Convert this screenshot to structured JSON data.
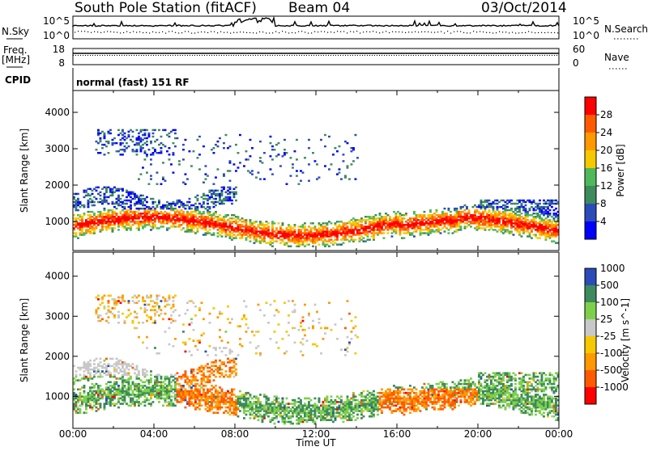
{
  "header": {
    "station": "South Pole Station (fitACF)",
    "beam": "Beam 04",
    "date": "03/Oct/2014"
  },
  "top_panels": {
    "nsky_label": "N.Sky",
    "nsky_ticks": [
      "10^5",
      "10^0"
    ],
    "nsearch_label": "N.Search",
    "nsearch_ticks": [
      "10^5",
      "10^0"
    ],
    "freq_label_1": "Freq.",
    "freq_label_2": "[MHz]",
    "freq_ticks": [
      "18",
      "8"
    ],
    "nave_label": "Nave",
    "nave_ticks": [
      "60",
      "0"
    ],
    "cpid_label": "CPID",
    "cpid_value": "normal (fast) 151 RF"
  },
  "colors": {
    "power": [
      "#0000ff",
      "#2b4cb8",
      "#3d8a5c",
      "#4fb85a",
      "#f5c800",
      "#ff9900",
      "#ff5a00",
      "#ff0000"
    ],
    "velocity": [
      "#ff0000",
      "#ff5a00",
      "#ff9900",
      "#f5c800",
      "#c8c8c8",
      "#7ed04a",
      "#3d8a5c",
      "#2b4cb8"
    ]
  },
  "chart_data": [
    {
      "type": "heatmap",
      "panel": "power",
      "ylabel": "Slant Range [km]",
      "ylim": [
        200,
        4600
      ],
      "yticks": [
        "1000",
        "2000",
        "3000",
        "4000"
      ],
      "xlabel": "Time UT",
      "xlim": [
        "00:00",
        "24:00"
      ],
      "xticks": [
        "00:00",
        "04:00",
        "08:00",
        "12:00",
        "16:00",
        "20:00",
        "00:00"
      ],
      "colorbar_label": "Power [dB]",
      "colorbar_ticks": [
        "4",
        "8",
        "12",
        "16",
        "20",
        "24",
        "28"
      ],
      "colorbar_range": [
        0,
        32
      ]
    },
    {
      "type": "heatmap",
      "panel": "velocity",
      "ylabel": "Slant Range [km]",
      "ylim": [
        200,
        4600
      ],
      "yticks": [
        "1000",
        "2000",
        "3000",
        "4000"
      ],
      "xlabel": "Time UT",
      "xlim": [
        "00:00",
        "24:00"
      ],
      "xticks": [
        "00:00",
        "04:00",
        "08:00",
        "12:00",
        "16:00",
        "20:00",
        "00:00"
      ],
      "colorbar_label": "Velocity [m s^-1]",
      "colorbar_ticks": [
        "-1000",
        "-500",
        "-100",
        "-25",
        "25",
        "100",
        "500",
        "1000"
      ]
    }
  ]
}
